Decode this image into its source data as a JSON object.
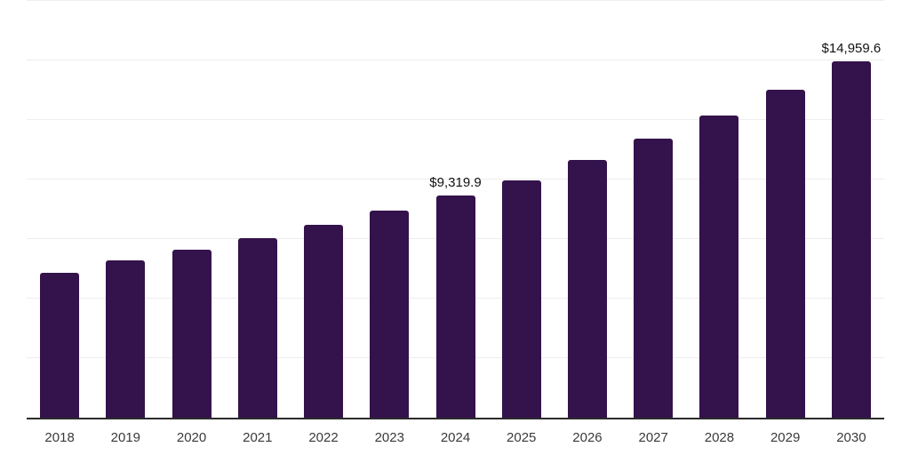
{
  "chart_data": {
    "type": "bar",
    "title": "",
    "xlabel": "",
    "ylabel": "",
    "categories": [
      "2018",
      "2019",
      "2020",
      "2021",
      "2022",
      "2023",
      "2024",
      "2025",
      "2026",
      "2027",
      "2028",
      "2029",
      "2030"
    ],
    "values": [
      6080,
      6620,
      7070,
      7550,
      8110,
      8710,
      9319.9,
      9980,
      10810,
      11700,
      12680,
      13760,
      14959.6
    ],
    "data_labels": [
      "",
      "",
      "",
      "",
      "",
      "",
      "$9,319.9",
      "",
      "",
      "",
      "",
      "",
      "$14,959.6"
    ],
    "ylim": [
      0,
      17500
    ],
    "gridline_interval": 2500,
    "grid": "horizontal-only",
    "legend": "none",
    "y_axis_tick_labels": "none",
    "colors": {
      "bar": "#34124B",
      "gridline": "#ededed",
      "axis_line": "#2b2b2b",
      "x_label": "#3a3a3a",
      "data_label": "#111111",
      "background": "#ffffff"
    }
  }
}
